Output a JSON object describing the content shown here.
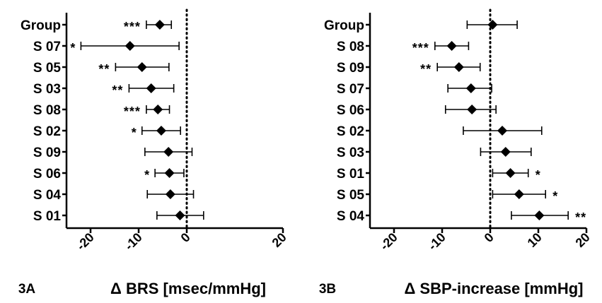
{
  "chart_data": [
    {
      "type": "forest",
      "panel_label": "3A",
      "xlabel": "Δ BRS [msec/mmHg]",
      "xlim": [
        -25,
        20
      ],
      "xticks": [
        -20,
        -10,
        0,
        20
      ],
      "reference_line": 0,
      "categories": [
        "Group",
        "S 07",
        "S 05",
        "S 03",
        "S 08",
        "S 02",
        "S 09",
        "S 06",
        "S 04",
        "S 01"
      ],
      "estimates": [
        -5.6,
        -11.8,
        -9.3,
        -7.4,
        -6.0,
        -5.3,
        -3.8,
        -3.6,
        -3.4,
        -1.4
      ],
      "ci_low": [
        -8.4,
        -22.0,
        -14.8,
        -12.0,
        -8.4,
        -9.3,
        -8.7,
        -6.6,
        -8.2,
        -6.2
      ],
      "ci_high": [
        -3.2,
        -1.6,
        -3.7,
        -2.7,
        -3.6,
        -1.3,
        1.1,
        -0.6,
        1.4,
        3.5
      ],
      "significance": [
        "***",
        "*",
        "**",
        "**",
        "***",
        "*",
        "",
        "*",
        "",
        ""
      ]
    },
    {
      "type": "forest",
      "panel_label": "3B",
      "xlabel": "Δ SBP-increase [mmHg]",
      "xlim": [
        -25,
        20
      ],
      "xticks": [
        -20,
        -10,
        0,
        10,
        20
      ],
      "reference_line": 0,
      "categories": [
        "Group",
        "S 08",
        "S 09",
        "S 07",
        "S 06",
        "S 02",
        "S 03",
        "S 01",
        "S 05",
        "S 04"
      ],
      "estimates": [
        0.5,
        -8.0,
        -6.5,
        -4.0,
        -3.8,
        2.5,
        3.2,
        4.2,
        6.0,
        10.2
      ],
      "ci_low": [
        -4.8,
        -11.5,
        -11.0,
        -8.8,
        -9.3,
        -5.6,
        -2.0,
        0.5,
        0.5,
        4.4
      ],
      "ci_high": [
        5.6,
        -4.5,
        -2.1,
        0.3,
        1.2,
        10.7,
        8.5,
        7.9,
        11.5,
        16.2
      ],
      "significance": [
        "",
        "***",
        "**",
        "",
        "",
        "",
        "",
        "*",
        "*",
        "**"
      ]
    }
  ]
}
